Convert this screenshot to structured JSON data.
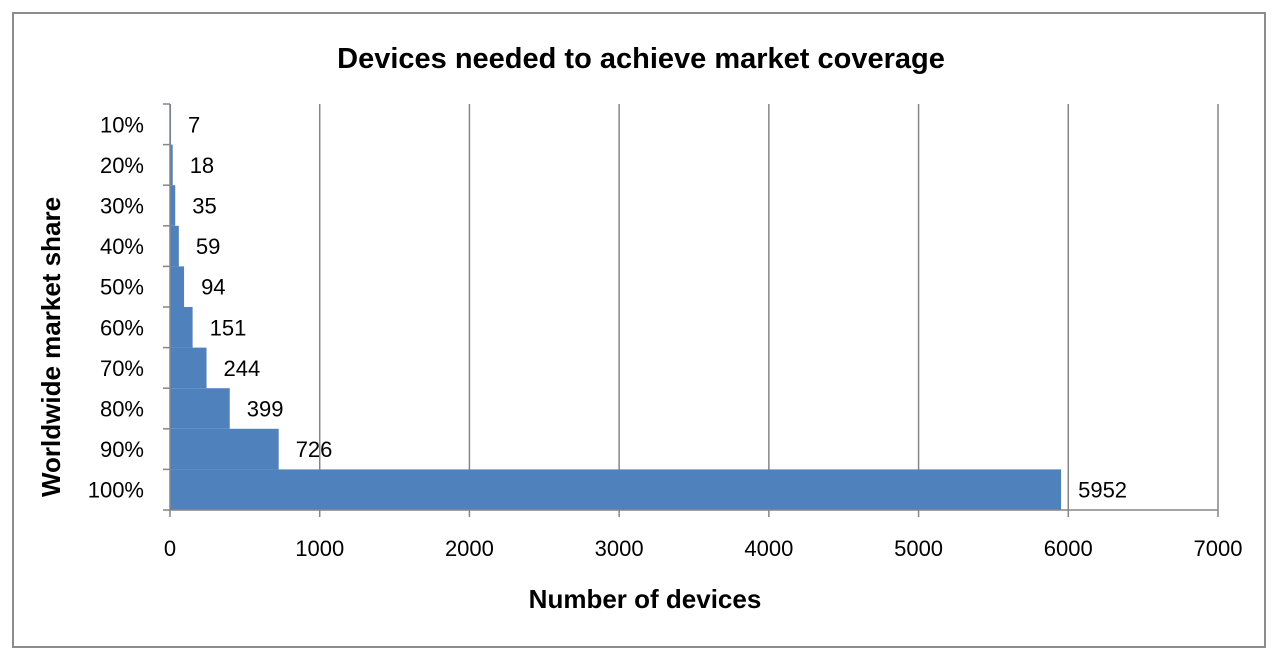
{
  "chart_data": {
    "type": "bar",
    "orientation": "horizontal",
    "title": "Devices needed to achieve market coverage",
    "xlabel": "Number of devices",
    "ylabel": "Worldwide market share",
    "categories": [
      "10%",
      "20%",
      "30%",
      "40%",
      "50%",
      "60%",
      "70%",
      "80%",
      "90%",
      "100%"
    ],
    "values": [
      7,
      18,
      35,
      59,
      94,
      151,
      244,
      399,
      726,
      5952
    ],
    "data_labels": [
      "7",
      "18",
      "35",
      "59",
      "94",
      "151",
      "244",
      "399",
      "726",
      "5952"
    ],
    "xlim": [
      0,
      7000
    ],
    "xticks": [
      0,
      1000,
      2000,
      3000,
      4000,
      5000,
      6000,
      7000
    ],
    "xtick_labels": [
      "0",
      "1000",
      "2000",
      "3000",
      "4000",
      "5000",
      "6000",
      "7000"
    ],
    "grid": "vertical",
    "legend": "none",
    "bar_color": "#4f81bd",
    "gridline_color": "#868686"
  }
}
